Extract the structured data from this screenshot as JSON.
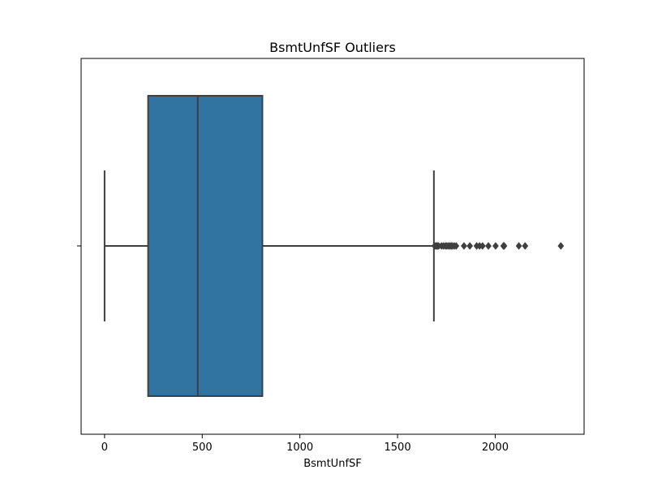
{
  "chart_data": {
    "type": "boxplot",
    "title": "BsmtUnfSF Outliers",
    "xlabel": "BsmtUnfSF",
    "ylabel": "",
    "orientation": "horizontal",
    "xlim": [
      -120,
      2455
    ],
    "x_ticks": [
      0,
      500,
      1000,
      1500,
      2000
    ],
    "grid": false,
    "box": {
      "min": 0,
      "q1": 223,
      "median": 477,
      "q3": 808,
      "whisker_low": 0,
      "whisker_high": 1686,
      "color": "#3274a1",
      "edge_color": "#3f3f3f"
    },
    "outliers": [
      1690,
      1696,
      1700,
      1705,
      1710,
      1725,
      1735,
      1745,
      1752,
      1760,
      1768,
      1775,
      1780,
      1790,
      1800,
      1840,
      1870,
      1905,
      1920,
      1935,
      1965,
      2002,
      2042,
      2046,
      2121,
      2153,
      2336
    ]
  }
}
